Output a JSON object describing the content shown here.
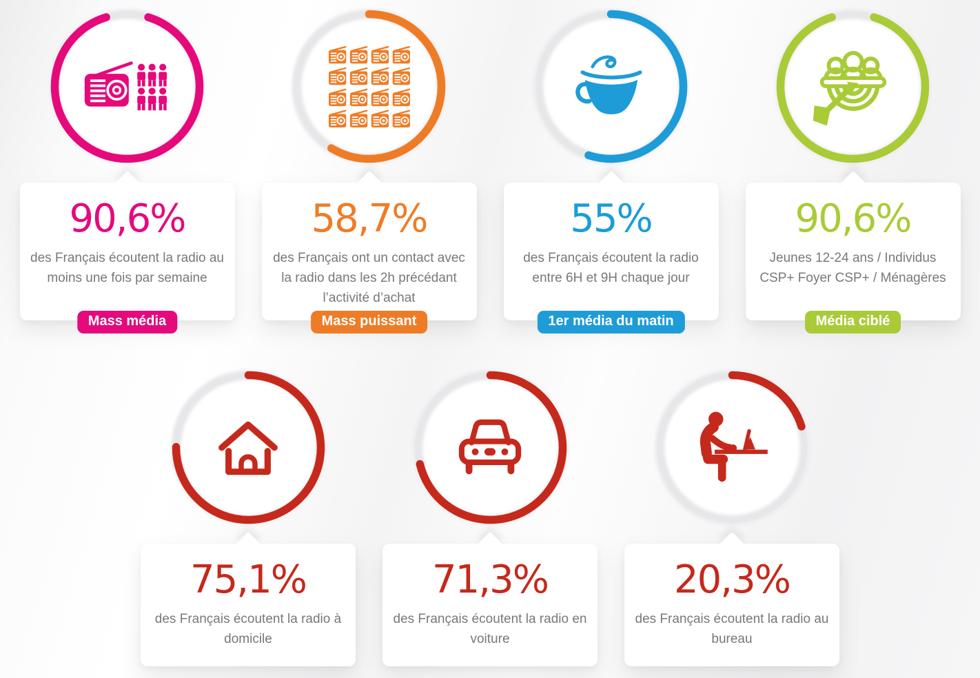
{
  "chart_data": {
    "type": "pie",
    "variant": "progress-ring-gauges",
    "unit": "%",
    "legend_position": "none",
    "items": [
      {
        "display": "90,6%",
        "value": 90.6,
        "desc": "des Français écoutent la radio au moins une fois par semaine",
        "badge": "Mass média",
        "color": "#e5097c",
        "icon": "radio-audience-icon"
      },
      {
        "display": "58,7%",
        "value": 58.7,
        "desc": "des Français ont un contact avec la radio dans les 2h précédant l’activité d’achat",
        "badge": "Mass puissant",
        "color": "#ee7c26",
        "icon": "radios-grid-icon"
      },
      {
        "display": "55%",
        "value": 55,
        "desc": "des Français écoutent la radio entre 6H et 9H chaque jour",
        "badge": "1er média du matin",
        "color": "#1d9cd8",
        "icon": "coffee-cup-icon"
      },
      {
        "display": "90,6%",
        "value": 90.6,
        "desc": "Jeunes 12-24 ans / Individus CSP+ Foyer CSP+ / Ménagères",
        "badge": "Média ciblé",
        "color": "#a9cb38",
        "icon": "audience-target-icon"
      },
      {
        "display": "75,1%",
        "value": 75.1,
        "desc": "des Français écoutent la radio à domicile",
        "badge": "",
        "color": "#c5291c",
        "icon": "house-icon"
      },
      {
        "display": "71,3%",
        "value": 71.3,
        "desc": "des Français écoutent la radio en voiture",
        "badge": "",
        "color": "#c5291c",
        "icon": "car-icon"
      },
      {
        "display": "20,3%",
        "value": 20.3,
        "desc": "des Français écoutent la radio au bureau",
        "badge": "",
        "color": "#c5291c",
        "icon": "desk-worker-icon"
      }
    ]
  }
}
